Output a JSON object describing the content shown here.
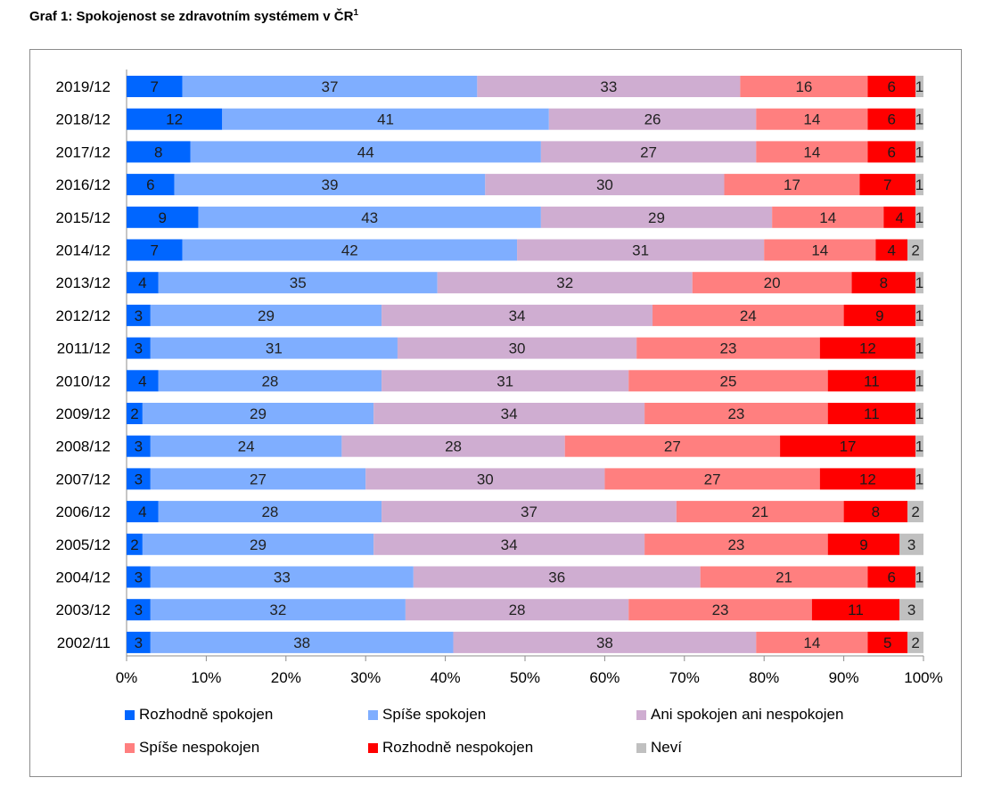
{
  "title": "Graf 1: Spokojenost se zdravotním systémem v ČR",
  "title_sup": "1",
  "chart_data": {
    "type": "bar",
    "orientation": "horizontal",
    "stacked": true,
    "normalized": true,
    "categories": [
      "2019/12",
      "2018/12",
      "2017/12",
      "2016/12",
      "2015/12",
      "2014/12",
      "2013/12",
      "2012/12",
      "2011/12",
      "2010/12",
      "2009/12",
      "2008/12",
      "2007/12",
      "2006/12",
      "2005/12",
      "2004/12",
      "2003/12",
      "2002/11"
    ],
    "series": [
      {
        "name": "Rozhodně spokojen",
        "color": "#0066ff",
        "values": [
          7,
          12,
          8,
          6,
          9,
          7,
          4,
          3,
          3,
          4,
          2,
          3,
          3,
          4,
          2,
          3,
          3,
          3
        ]
      },
      {
        "name": "Spíše spokojen",
        "color": "#7faeff",
        "values": [
          37,
          41,
          44,
          39,
          43,
          42,
          35,
          29,
          31,
          28,
          29,
          24,
          27,
          28,
          29,
          33,
          32,
          38
        ]
      },
      {
        "name": "Ani spokojen ani nespokojen",
        "color": "#cfadd1",
        "values": [
          33,
          26,
          27,
          30,
          29,
          31,
          32,
          34,
          30,
          31,
          34,
          28,
          30,
          37,
          34,
          36,
          28,
          38
        ]
      },
      {
        "name": "Spíše nespokojen",
        "color": "#ff7f7f",
        "values": [
          16,
          14,
          14,
          17,
          14,
          14,
          20,
          24,
          23,
          25,
          23,
          27,
          27,
          21,
          23,
          21,
          23,
          14
        ]
      },
      {
        "name": "Rozhodně nespokojen",
        "color": "#ff0000",
        "values": [
          6,
          6,
          6,
          7,
          4,
          4,
          8,
          9,
          12,
          11,
          11,
          17,
          12,
          8,
          9,
          6,
          11,
          5
        ]
      },
      {
        "name": "Neví",
        "color": "#c0c0c0",
        "values": [
          1,
          1,
          1,
          1,
          1,
          2,
          1,
          1,
          1,
          1,
          1,
          1,
          1,
          2,
          3,
          1,
          3,
          2
        ]
      }
    ],
    "xlim": [
      0,
      100
    ],
    "xticks": [
      "0%",
      "10%",
      "20%",
      "30%",
      "40%",
      "50%",
      "60%",
      "70%",
      "80%",
      "90%",
      "100%"
    ],
    "grid": false,
    "legend_position": "bottom"
  }
}
